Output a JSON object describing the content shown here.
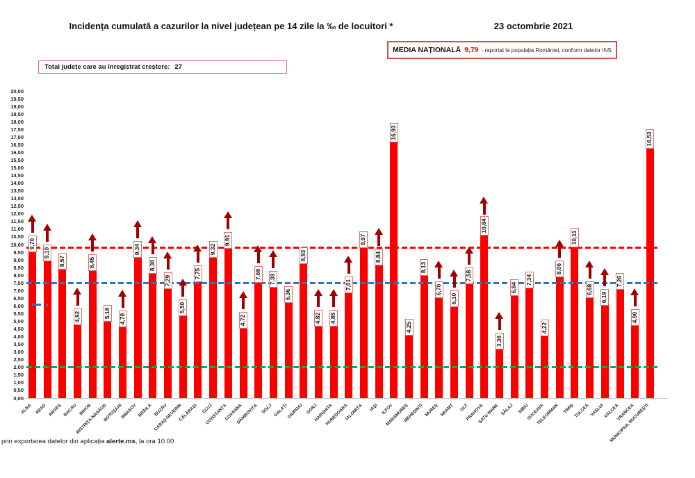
{
  "header": {
    "title": "Incidența cumulată a cazurilor la nivel județean pe 14 zile la ‰ de locuitori *",
    "date": "23 octombrie 2021",
    "national_average": {
      "label": "MEDIA NAȚIONALĂ",
      "value": "9,79",
      "note": "-  raportat la populația României, conform datelor INS"
    },
    "total_box": {
      "label": "Total județe care au înregistrat creștere:",
      "count": "27"
    }
  },
  "footer": {
    "text_before": "prin exportarea datelor din aplicația ",
    "app_name": "alerte.ms",
    "text_after": ", la ora 10.00"
  },
  "colors": {
    "bar": "#fc0000",
    "arrow": "#a00000",
    "label_box_border": "#e8696b",
    "ref_red": "#ff0000",
    "ref_blue": "#2e75b6",
    "ref_green": "#00b050",
    "average_value_text": "#ff0000"
  },
  "chart_data": {
    "type": "bar",
    "title": "Incidența cumulată a cazurilor la nivel județean pe 14 zile la ‰ de locuitori *",
    "xlabel": "",
    "ylabel": "",
    "ylim": [
      0,
      20
    ],
    "ytick_step": 0.5,
    "grid": false,
    "bar_color": "#fc0000",
    "decimal_separator": ",",
    "categories": [
      "ALBA",
      "ARAD",
      "ARGEȘ",
      "BACĂU",
      "BIHOR",
      "BISTRIȚA-NĂSĂUD",
      "BOTOȘANI",
      "BRAȘOV",
      "BRĂILA",
      "BUZĂU",
      "CARAȘ-SEVERIN",
      "CĂLĂRAȘI",
      "CLUJ",
      "CONSTANȚA",
      "COVASNA",
      "DÂMBOVIȚA",
      "DOLJ",
      "GALAȚI",
      "GIURGIU",
      "GORJ",
      "HARGHITA",
      "HUNEDOARA",
      "IALOMIȚA",
      "IAȘI",
      "ILFOV",
      "MARAMUREȘ",
      "MEHEDINȚI",
      "MUREȘ",
      "NEAMȚ",
      "OLT",
      "PRAHOVA",
      "SATU MARE",
      "SĂLAJ",
      "SIBIU",
      "SUCEAVA",
      "TELEORMAN",
      "TIMIȘ",
      "TULCEA",
      "VASLUI",
      "VÂLCEA",
      "VRANCEA",
      "MUNICIPIUL BUCUREȘTI"
    ],
    "values": [
      9.7,
      9.1,
      8.57,
      4.92,
      8.45,
      5.18,
      4.78,
      9.34,
      8.3,
      7.29,
      5.5,
      7.75,
      9.32,
      9.91,
      4.72,
      7.68,
      7.39,
      6.36,
      8.93,
      4.82,
      4.85,
      7.01,
      9.97,
      8.84,
      16.93,
      4.25,
      8.13,
      6.7,
      6.1,
      7.58,
      10.84,
      3.36,
      6.84,
      7.34,
      4.22,
      8.06,
      10.11,
      6.68,
      6.19,
      7.26,
      4.9,
      16.53
    ],
    "increase_arrows": [
      1,
      1,
      0,
      1,
      1,
      0,
      1,
      1,
      1,
      1,
      1,
      1,
      0,
      1,
      1,
      1,
      1,
      0,
      0,
      1,
      1,
      1,
      0,
      1,
      0,
      0,
      0,
      1,
      1,
      1,
      1,
      1,
      0,
      0,
      0,
      1,
      0,
      1,
      1,
      0,
      1,
      0
    ],
    "reference_lines": [
      {
        "name": "media-nationala",
        "value": 9.79,
        "color": "#ff0000"
      },
      {
        "name": "threshold-7-5",
        "value": 7.5,
        "color": "#2e75b6"
      },
      {
        "name": "threshold-2",
        "value": 2.0,
        "color": "#00b050"
      }
    ],
    "legend_position": "none"
  }
}
